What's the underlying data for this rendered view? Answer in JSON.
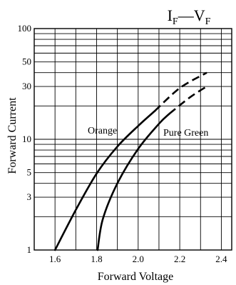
{
  "chart_data": {
    "type": "line",
    "title": {
      "main1": "I",
      "sub1": "F",
      "dash": "—",
      "main2": "V",
      "sub2": "F"
    },
    "xlabel": "Forward Voltage",
    "ylabel": "Forward Current",
    "xlim": [
      1.5,
      2.45
    ],
    "ylim": [
      1,
      100
    ],
    "yscale": "log",
    "grid": true,
    "x_ticks": [
      1.6,
      1.8,
      2.0,
      2.2,
      2.4
    ],
    "x_tick_labels": [
      "1.6",
      "1.8",
      "2.0",
      "2.2",
      "2.4"
    ],
    "y_ticks": [
      1,
      3,
      5,
      10,
      30,
      50,
      100
    ],
    "y_tick_labels": [
      "1",
      "3",
      "5",
      "10",
      "30",
      "50",
      "100"
    ],
    "series": [
      {
        "name": "Orange",
        "solid": [
          [
            1.6,
            1
          ],
          [
            1.7,
            2.3
          ],
          [
            1.8,
            4.9
          ],
          [
            1.9,
            8.6
          ],
          [
            2.0,
            13.2
          ],
          [
            2.08,
            18
          ]
        ],
        "dashed": [
          [
            2.08,
            18
          ],
          [
            2.2,
            29
          ],
          [
            2.33,
            40
          ]
        ]
      },
      {
        "name": "Pure Green",
        "solid": [
          [
            1.805,
            1
          ],
          [
            1.83,
            1.9
          ],
          [
            1.9,
            4.0
          ],
          [
            2.0,
            8.2
          ],
          [
            2.1,
            13.8
          ],
          [
            2.15,
            17
          ]
        ],
        "dashed": [
          [
            2.15,
            17
          ],
          [
            2.25,
            24
          ],
          [
            2.33,
            30
          ]
        ]
      }
    ]
  }
}
